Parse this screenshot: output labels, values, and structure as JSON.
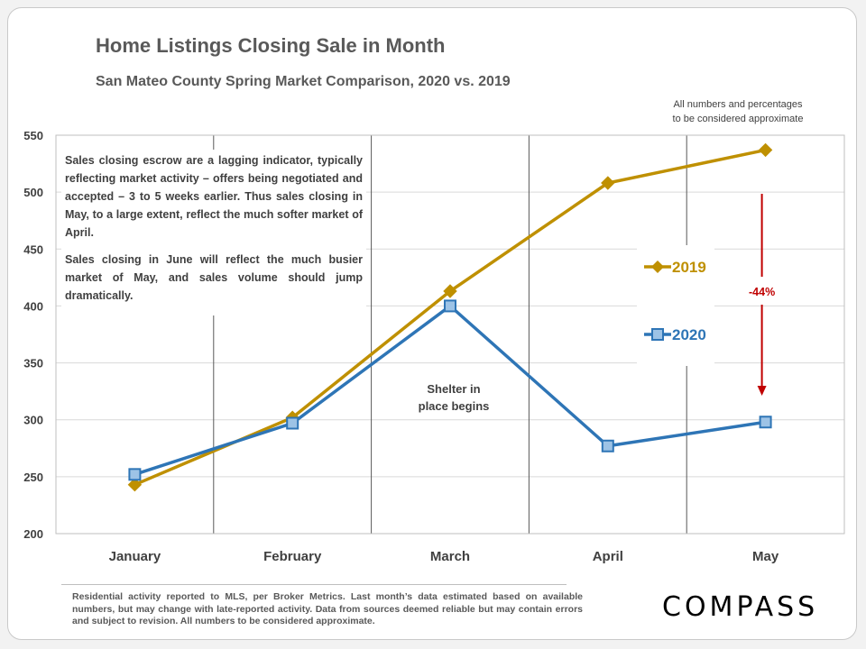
{
  "page": {
    "footer_text": "Residential activity reported to MLS, per Broker Metrics. Last month’s data estimated based on available numbers, but may change with late-reported activity. Data from sources deemed reliable but may contain errors and subject to revision. All numbers to be considered approximate.",
    "logo_text": "COMPASS",
    "approx_note": "All numbers and percentages\nto be considered approximate",
    "note_p1": "Sales closing escrow are a lagging indicator, typically reflecting market activity – offers being negotiated and accepted – 3 to 5 weeks earlier.  Thus sales closing in May, to a large extent, reflect the much softer market of April.",
    "note_p2": "Sales closing in June will reflect the much busier market of May, and sales volume should jump dramatically."
  },
  "chart_data": {
    "type": "line",
    "title": "Home Listings Closing Sale in Month",
    "subtitle": "San Mateo County Spring Market Comparison,  2020 vs. 2019",
    "categories": [
      "January",
      "February",
      "March",
      "April",
      "May"
    ],
    "ylim": [
      200,
      550
    ],
    "yticks": [
      200,
      250,
      300,
      350,
      400,
      450,
      500,
      550
    ],
    "grid": true,
    "series": [
      {
        "name": "2019",
        "values": [
          243,
          302,
          413,
          508,
          537
        ],
        "color": "#bf9000",
        "marker": "diamond"
      },
      {
        "name": "2020",
        "values": [
          252,
          297,
          400,
          277,
          298
        ],
        "color": "#2e75b6",
        "marker": "square"
      }
    ],
    "annotations": {
      "shelter": "Shelter in\nplace begins",
      "change": "-44%",
      "change_color": "#c00000"
    },
    "legend_position": "right"
  }
}
